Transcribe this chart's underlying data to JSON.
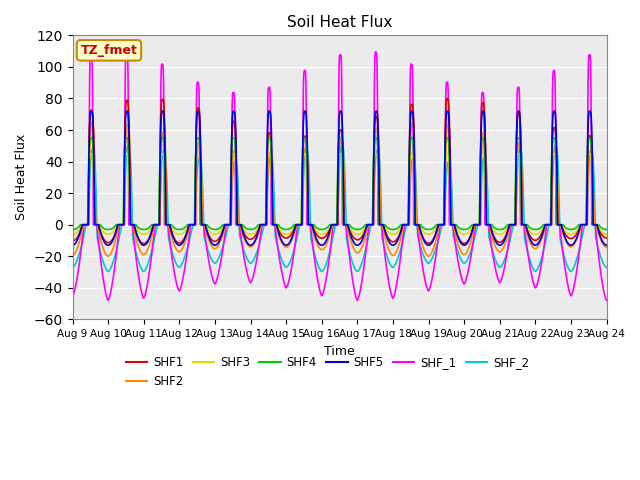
{
  "title": "Soil Heat Flux",
  "xlabel": "Time",
  "ylabel": "Soil Heat Flux",
  "ylim": [
    -60,
    120
  ],
  "yticks": [
    -60,
    -40,
    -20,
    0,
    20,
    40,
    60,
    80,
    100,
    120
  ],
  "xtick_labels": [
    "Aug 9",
    "Aug 10",
    "Aug 11",
    "Aug 12",
    "Aug 13",
    "Aug 14",
    "Aug 15",
    "Aug 16",
    "Aug 17",
    "Aug 18",
    "Aug 19",
    "Aug 20",
    "Aug 21",
    "Aug 22",
    "Aug 23",
    "Aug 24"
  ],
  "annotation_text": "TZ_fmet",
  "annotation_bg": "#FFFFCC",
  "annotation_border": "#CC8800",
  "series_order": [
    "SHF_2",
    "SHF_1",
    "SHF2",
    "SHF3",
    "SHF1",
    "SHF4",
    "SHF5"
  ],
  "series": {
    "SHF1": {
      "color": "#DD0000",
      "lw": 1.2
    },
    "SHF2": {
      "color": "#FF8800",
      "lw": 1.2
    },
    "SHF3": {
      "color": "#DDDD00",
      "lw": 1.2
    },
    "SHF4": {
      "color": "#00CC00",
      "lw": 1.2
    },
    "SHF5": {
      "color": "#0000DD",
      "lw": 1.2
    },
    "SHF_1": {
      "color": "#FF00FF",
      "lw": 1.2
    },
    "SHF_2": {
      "color": "#00CCCC",
      "lw": 1.2
    }
  },
  "legend_order": [
    "SHF1",
    "SHF2",
    "SHF3",
    "SHF4",
    "SHF5",
    "SHF_1",
    "SHF_2"
  ],
  "plot_bg": "#EBEBEB",
  "grid_color": "#FFFFFF"
}
